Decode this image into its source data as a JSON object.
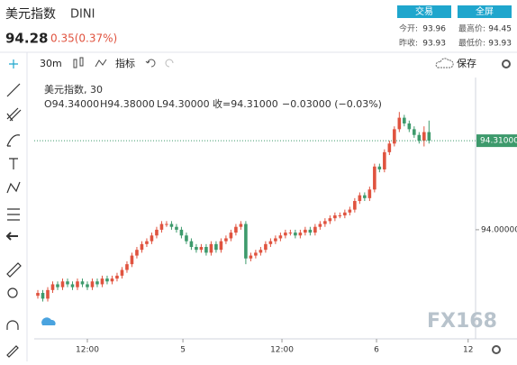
{
  "header": {
    "title": "美元指数",
    "code": "DINI",
    "price": "94.28",
    "change": "0.35(0.37%)",
    "buttons": [
      "交易",
      "全屏"
    ],
    "stats": [
      {
        "label": "今开:",
        "value": "93.96"
      },
      {
        "label": "最高价:",
        "value": "94.45"
      },
      {
        "label": "昨收:",
        "value": "93.93"
      },
      {
        "label": "最低价:",
        "value": "93.93"
      }
    ]
  },
  "toolbar": {
    "interval": "30m",
    "indicators": "指标",
    "save": "保存"
  },
  "legend": {
    "name": "美元指数, 30",
    "open": "O94.34000",
    "high": "H94.38000",
    "low": "L94.30000",
    "close": "收=94.31000",
    "change": "−0.03000 (−0.03%)"
  },
  "watermark": "FX168",
  "chart_data": {
    "type": "candlestick",
    "up_color": "#e0533f",
    "down_color": "#3d9a6c",
    "xlim": [
      -0.5,
      88.4
    ],
    "ylim": [
      93.62,
      94.53
    ],
    "xticks": [
      {
        "value": 10,
        "label": "12:00"
      },
      {
        "value": 29.3,
        "label": "5"
      },
      {
        "value": 49.3,
        "label": "12:00"
      },
      {
        "value": 68.4,
        "label": "6"
      },
      {
        "value": 86.9,
        "label": "12"
      }
    ],
    "yticks": [
      {
        "value": 94,
        "label": "94.00000"
      }
    ],
    "last_price": {
      "value": 94.31,
      "label": "94.31000"
    },
    "open": [
      93.77,
      93.78,
      93.76,
      93.79,
      93.81,
      93.8,
      93.82,
      93.81,
      93.8,
      93.82,
      93.81,
      93.8,
      93.82,
      93.81,
      93.83,
      93.82,
      93.83,
      93.84,
      93.86,
      93.88,
      93.91,
      93.93,
      93.95,
      93.96,
      93.98,
      94.0,
      94.02,
      94.02,
      94.01,
      94.0,
      93.98,
      93.96,
      93.94,
      93.93,
      93.94,
      93.92,
      93.95,
      93.93,
      93.96,
      93.97,
      93.99,
      94.01,
      94.02,
      93.9,
      93.91,
      93.92,
      93.93,
      93.95,
      93.96,
      93.97,
      93.98,
      93.99,
      93.99,
      93.98,
      93.99,
      94.0,
      93.99,
      94.01,
      94.02,
      94.03,
      94.04,
      94.05,
      94.05,
      94.06,
      94.07,
      94.1,
      94.12,
      94.11,
      94.14,
      94.22,
      94.21,
      94.27,
      94.3,
      94.35,
      94.39,
      94.37,
      94.35,
      94.33,
      94.31,
      94.34
    ],
    "high": [
      93.79,
      93.79,
      93.8,
      93.82,
      93.82,
      93.83,
      93.83,
      93.82,
      93.83,
      93.83,
      93.82,
      93.83,
      93.83,
      93.84,
      93.84,
      93.84,
      93.85,
      93.87,
      93.89,
      93.92,
      93.94,
      93.96,
      93.97,
      93.99,
      94.01,
      94.03,
      94.03,
      94.03,
      94.02,
      94.01,
      93.99,
      93.97,
      93.95,
      93.95,
      93.95,
      93.96,
      93.96,
      93.97,
      93.98,
      94.0,
      94.02,
      94.03,
      94.03,
      93.92,
      93.93,
      93.94,
      93.96,
      93.97,
      93.98,
      93.99,
      94.0,
      94.0,
      94.0,
      94.0,
      94.01,
      94.01,
      94.02,
      94.03,
      94.04,
      94.05,
      94.06,
      94.06,
      94.07,
      94.08,
      94.11,
      94.13,
      94.13,
      94.15,
      94.23,
      94.23,
      94.28,
      94.31,
      94.36,
      94.41,
      94.4,
      94.38,
      94.36,
      94.34,
      94.36,
      94.38
    ],
    "low": [
      93.76,
      93.75,
      93.75,
      93.78,
      93.79,
      93.79,
      93.8,
      93.79,
      93.79,
      93.8,
      93.79,
      93.79,
      93.8,
      93.8,
      93.81,
      93.81,
      93.82,
      93.83,
      93.85,
      93.87,
      93.9,
      93.92,
      93.94,
      93.95,
      93.97,
      93.99,
      94.01,
      94.0,
      93.99,
      93.97,
      93.95,
      93.93,
      93.92,
      93.92,
      93.91,
      93.91,
      93.92,
      93.92,
      93.95,
      93.96,
      93.98,
      94.0,
      93.88,
      93.89,
      93.9,
      93.91,
      93.92,
      93.94,
      93.95,
      93.96,
      93.97,
      93.98,
      93.97,
      93.97,
      93.98,
      93.98,
      93.98,
      94.0,
      94.01,
      94.02,
      94.03,
      94.04,
      94.04,
      94.05,
      94.06,
      94.09,
      94.1,
      94.1,
      94.13,
      94.2,
      94.2,
      94.26,
      94.29,
      94.34,
      94.36,
      94.34,
      94.32,
      94.3,
      94.29,
      94.3
    ],
    "close": [
      93.78,
      93.76,
      93.79,
      93.81,
      93.8,
      93.82,
      93.81,
      93.8,
      93.82,
      93.81,
      93.8,
      93.82,
      93.81,
      93.83,
      93.82,
      93.83,
      93.84,
      93.86,
      93.88,
      93.91,
      93.93,
      93.95,
      93.96,
      93.98,
      94.0,
      94.02,
      94.02,
      94.01,
      94.0,
      93.98,
      93.96,
      93.94,
      93.93,
      93.94,
      93.92,
      93.95,
      93.93,
      93.96,
      93.97,
      93.99,
      94.01,
      94.02,
      93.9,
      93.91,
      93.92,
      93.93,
      93.95,
      93.96,
      93.97,
      93.98,
      93.99,
      93.99,
      93.98,
      93.99,
      94.0,
      93.99,
      94.01,
      94.02,
      94.03,
      94.04,
      94.05,
      94.05,
      94.06,
      94.07,
      94.1,
      94.12,
      94.11,
      94.14,
      94.22,
      94.21,
      94.27,
      94.3,
      94.35,
      94.39,
      94.37,
      94.35,
      94.33,
      94.31,
      94.34,
      94.31
    ]
  }
}
